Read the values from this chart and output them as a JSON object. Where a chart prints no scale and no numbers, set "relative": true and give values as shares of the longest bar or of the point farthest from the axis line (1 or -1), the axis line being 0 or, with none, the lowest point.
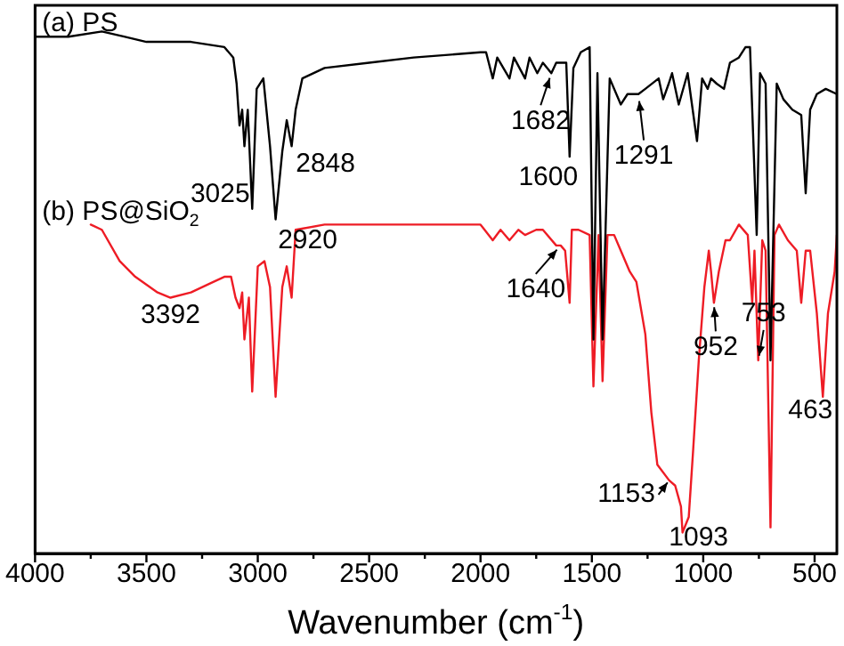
{
  "chart_data": {
    "type": "line",
    "xlabel": "Wavenumber (cm$^{-1}$)",
    "relative": true,
    "xlim": [
      4000,
      400
    ],
    "xticks": [
      4000,
      {
        "value": 3750,
        "label": null
      },
      3500,
      {
        "value": 3250,
        "label": null
      },
      3000,
      {
        "value": 2750,
        "label": null
      },
      2500,
      {
        "value": 2250,
        "label": null
      },
      2000,
      {
        "value": 1750,
        "label": null
      },
      1500,
      {
        "value": 1250,
        "label": null
      },
      1000,
      {
        "value": 750,
        "label": null
      },
      500
    ],
    "tick_labels": "x",
    "grid": false,
    "legend": false,
    "marker": "none",
    "line_style": "solid",
    "series": [
      {
        "name": "(a) PS",
        "color": "#000000",
        "x": [
          4000,
          3850,
          3700,
          3600,
          3500,
          3300,
          3150,
          3110,
          3095,
          3082,
          3070,
          3060,
          3045,
          3025,
          3005,
          2975,
          2945,
          2920,
          2890,
          2870,
          2848,
          2830,
          2800,
          2700,
          2500,
          2300,
          2000,
          1975,
          1945,
          1925,
          1870,
          1850,
          1800,
          1780,
          1745,
          1720,
          1682,
          1660,
          1615,
          1600,
          1583,
          1550,
          1510,
          1493,
          1475,
          1452,
          1420,
          1370,
          1340,
          1291,
          1260,
          1200,
          1180,
          1155,
          1140,
          1110,
          1070,
          1028,
          1005,
          980,
          965,
          940,
          907,
          880,
          840,
          810,
          790,
          760,
          745,
          720,
          698,
          670,
          640,
          600,
          560,
          540,
          520,
          490,
          450,
          400
        ],
        "values": [
          0.99,
          0.99,
          1,
          0.99,
          0.98,
          0.98,
          0.97,
          0.95,
          0.9,
          0.82,
          0.85,
          0.78,
          0.85,
          0.66,
          0.89,
          0.91,
          0.78,
          0.64,
          0.77,
          0.83,
          0.78,
          0.85,
          0.91,
          0.93,
          0.94,
          0.95,
          0.96,
          0.96,
          0.91,
          0.95,
          0.91,
          0.95,
          0.91,
          0.95,
          0.92,
          0.94,
          0.92,
          0.94,
          0.94,
          0.76,
          0.93,
          0.96,
          0.97,
          0.41,
          0.92,
          0.41,
          0.91,
          0.86,
          0.88,
          0.88,
          0.89,
          0.91,
          0.87,
          0.9,
          0.92,
          0.86,
          0.92,
          0.79,
          0.91,
          0.89,
          0.91,
          0.9,
          0.89,
          0.94,
          0.95,
          0.97,
          0.97,
          0.61,
          0.92,
          0.9,
          0.37,
          0.9,
          0.87,
          0.85,
          0.84,
          0.69,
          0.85,
          0.88,
          0.89,
          0.88
        ]
      },
      {
        "name": "(b) PS@SiO$_{2}$",
        "color": "#ee1c25",
        "x": [
          3750,
          3700,
          3620,
          3550,
          3450,
          3392,
          3300,
          3200,
          3150,
          3120,
          3100,
          3082,
          3070,
          3060,
          3040,
          3025,
          3000,
          2970,
          2945,
          2920,
          2890,
          2870,
          2848,
          2830,
          2700,
          2400,
          2000,
          1945,
          1910,
          1870,
          1830,
          1800,
          1750,
          1720,
          1660,
          1640,
          1620,
          1600,
          1590,
          1560,
          1510,
          1493,
          1470,
          1452,
          1430,
          1400,
          1370,
          1330,
          1300,
          1260,
          1233,
          1206,
          1153,
          1126,
          1100,
          1093,
          1065,
          1045,
          1020,
          995,
          975,
          965,
          952,
          930,
          900,
          880,
          840,
          800,
          780,
          770,
          753,
          735,
          720,
          698,
          680,
          660,
          620,
          580,
          560,
          540,
          520,
          490,
          463,
          440,
          410,
          400
        ],
        "values": [
          0.63,
          0.62,
          0.56,
          0.53,
          0.5,
          0.49,
          0.5,
          0.52,
          0.53,
          0.53,
          0.49,
          0.47,
          0.5,
          0.41,
          0.49,
          0.31,
          0.55,
          0.56,
          0.51,
          0.3,
          0.51,
          0.55,
          0.49,
          0.62,
          0.63,
          0.63,
          0.63,
          0.6,
          0.62,
          0.6,
          0.62,
          0.61,
          0.62,
          0.62,
          0.59,
          0.59,
          0.58,
          0.48,
          0.62,
          0.62,
          0.61,
          0.32,
          0.61,
          0.33,
          0.61,
          0.61,
          0.58,
          0.54,
          0.52,
          0.42,
          0.27,
          0.17,
          0.14,
          0.13,
          0.09,
          0.04,
          0.07,
          0.2,
          0.37,
          0.51,
          0.58,
          0.54,
          0.48,
          0.54,
          0.6,
          0.6,
          0.63,
          0.61,
          0.48,
          0.58,
          0.37,
          0.6,
          0.58,
          0.05,
          0.61,
          0.63,
          0.6,
          0.58,
          0.48,
          0.58,
          0.58,
          0.46,
          0.3,
          0.46,
          0.54,
          0.61
        ]
      }
    ],
    "annotations": [
      {
        "text": "3025",
        "x": 3025,
        "y": 0.66
      },
      {
        "text": "2920",
        "x": 2920,
        "y": 0.64
      },
      {
        "text": "2848",
        "x": 2848,
        "y": 0.78
      },
      {
        "text": "1682",
        "x": 1682,
        "y": 0.92
      },
      {
        "text": "1600",
        "x": 1600,
        "y": 0.76
      },
      {
        "text": "1291",
        "x": 1291,
        "y": 0.88
      },
      {
        "text": "3392",
        "x": 3392,
        "y": 0.49
      },
      {
        "text": "1640",
        "x": 1640,
        "y": 0.59
      },
      {
        "text": "952",
        "x": 952,
        "y": 0.48
      },
      {
        "text": "753",
        "x": 753,
        "y": 0.37
      },
      {
        "text": "1153",
        "x": 1153,
        "y": 0.14
      },
      {
        "text": "1093",
        "x": 1093,
        "y": 0.04
      },
      {
        "text": "463",
        "x": 463,
        "y": 0.3
      }
    ]
  }
}
